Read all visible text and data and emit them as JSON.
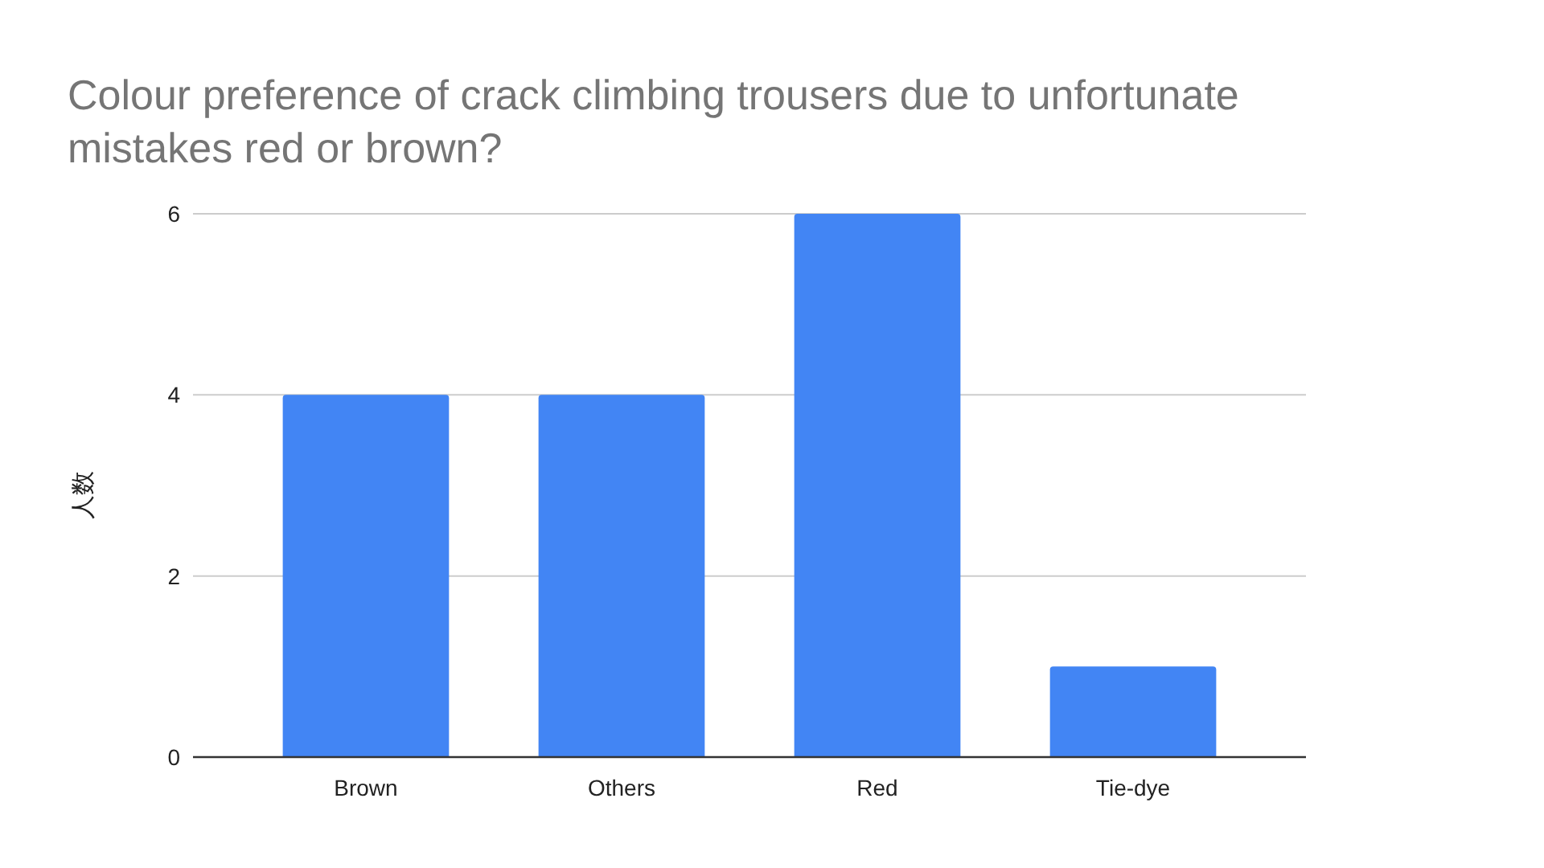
{
  "chart_data": {
    "type": "bar",
    "title": "Colour preference of crack climbing trousers due to unfortunate mistakes red or brown?",
    "ylabel": "人数",
    "categories": [
      "Brown",
      "Others",
      "Red",
      "Tie-dye"
    ],
    "values": [
      4,
      4,
      6,
      1
    ],
    "color": "#4285f4",
    "ylim": [
      0,
      6
    ],
    "yticks": [
      0,
      2,
      4,
      6
    ],
    "grid": "y"
  }
}
